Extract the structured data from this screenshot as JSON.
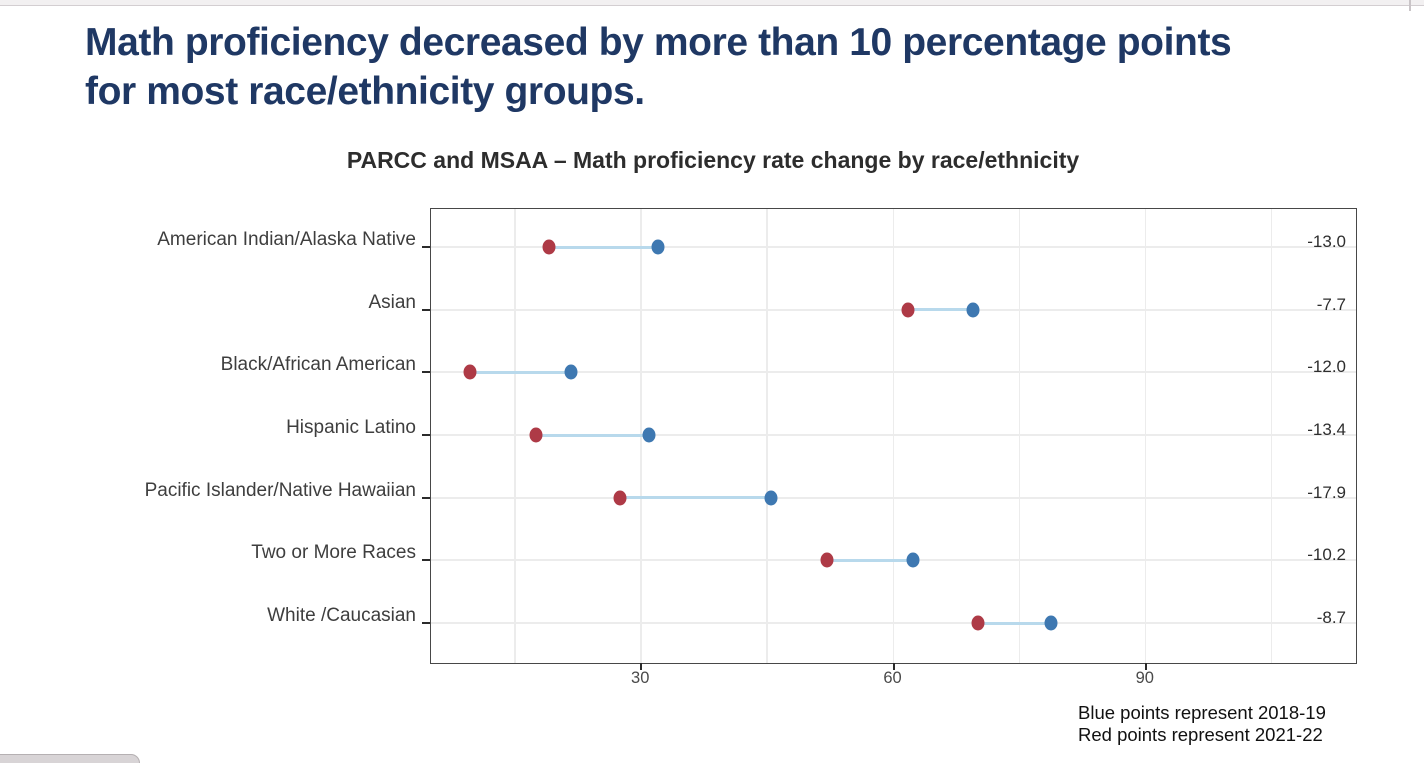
{
  "title": "Math proficiency decreased by more than 10 percentage points for most race/ethnicity groups.",
  "caption": {
    "line1": "Blue points represent 2018-19",
    "line2": "Red points represent 2021-22"
  },
  "colors": {
    "title_text": "#1F3864",
    "subtitle_text": "#2D2D2D",
    "blue_point": "#3E78B1",
    "red_point": "#AE3A46",
    "connector": "#B8D9EC",
    "gridline": "#ECECEC",
    "panel_border": "#474747",
    "axis_tick": "#2B2B2B",
    "category_text": "#3E3E3E",
    "value_text": "#2E2E2E",
    "axis_label_text": "#4A4A4A",
    "caption_text": "#111111"
  },
  "chart_data": {
    "type": "scatter",
    "subtype": "dumbbell",
    "orientation": "horizontal",
    "title": "PARCC and MSAA – Math proficiency rate change by race/ethnicity",
    "categories": [
      "American Indian/Alaska Native",
      "Asian",
      "Black/African American",
      "Hispanic Latino",
      "Pacific Islander/Native Hawaiian",
      "Two or More Races",
      "White /Caucasian"
    ],
    "series": [
      {
        "name": "2018-19",
        "point_color_role": "blue",
        "values": [
          32.0,
          69.4,
          21.6,
          30.9,
          45.4,
          62.3,
          78.7
        ]
      },
      {
        "name": "2021-22",
        "point_color_role": "red",
        "values": [
          19.0,
          61.7,
          9.6,
          17.5,
          27.5,
          52.1,
          70.0
        ]
      }
    ],
    "change_labels": [
      "-13.0",
      "-7.7",
      "-12.0",
      "-13.4",
      "-17.9",
      "-10.2",
      "-8.7"
    ],
    "xticks": [
      30,
      60,
      90
    ],
    "grid_x": [
      15,
      30,
      45,
      60,
      75,
      90,
      105
    ],
    "xlim": [
      5,
      115
    ],
    "grid": true,
    "legend_position": "caption bottom-right"
  }
}
